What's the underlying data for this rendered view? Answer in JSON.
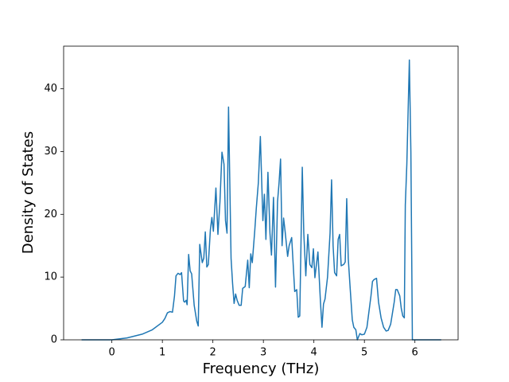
{
  "chart_data": {
    "type": "line",
    "xlabel": "Frequency (THz)",
    "ylabel": "Density of States",
    "xlim": [
      -0.955,
      6.855
    ],
    "ylim": [
      0,
      46.8
    ],
    "xticks": [
      0,
      1,
      2,
      3,
      4,
      5,
      6
    ],
    "yticks": [
      0,
      10,
      20,
      30,
      40
    ],
    "grid": false,
    "series": [
      {
        "color": "#1f77b4",
        "x": [
          -0.6,
          0,
          0.3,
          0.6,
          0.8,
          1.0,
          1.05,
          1.1,
          1.15,
          1.2,
          1.24,
          1.27,
          1.31,
          1.35,
          1.38,
          1.42,
          1.44,
          1.47,
          1.49,
          1.52,
          1.55,
          1.58,
          1.63,
          1.68,
          1.71,
          1.74,
          1.79,
          1.82,
          1.85,
          1.88,
          1.91,
          1.95,
          1.98,
          2.01,
          2.06,
          2.1,
          2.14,
          2.18,
          2.22,
          2.25,
          2.28,
          2.31,
          2.36,
          2.39,
          2.42,
          2.45,
          2.48,
          2.52,
          2.56,
          2.59,
          2.64,
          2.69,
          2.72,
          2.75,
          2.78,
          2.83,
          2.86,
          2.9,
          2.94,
          2.99,
          3.02,
          3.05,
          3.09,
          3.13,
          3.16,
          3.2,
          3.24,
          3.28,
          3.31,
          3.34,
          3.37,
          3.4,
          3.43,
          3.48,
          3.51,
          3.56,
          3.59,
          3.62,
          3.66,
          3.69,
          3.72,
          3.77,
          3.8,
          3.84,
          3.88,
          3.92,
          3.96,
          3.99,
          4.02,
          4.05,
          4.08,
          4.13,
          4.16,
          4.19,
          4.22,
          4.27,
          4.32,
          4.35,
          4.38,
          4.41,
          4.45,
          4.48,
          4.51,
          4.54,
          4.59,
          4.62,
          4.65,
          4.68,
          4.72,
          4.76,
          4.79,
          4.83,
          4.86,
          4.91,
          4.95,
          5.0,
          5.05,
          5.09,
          5.13,
          5.16,
          5.19,
          5.24,
          5.28,
          5.33,
          5.38,
          5.43,
          5.47,
          5.52,
          5.55,
          5.59,
          5.62,
          5.65,
          5.7,
          5.73,
          5.76,
          5.79,
          5.81,
          5.84,
          5.89,
          5.92,
          5.95,
          6.16,
          6.52
        ],
        "values": [
          0,
          0,
          0.3,
          0.9,
          1.6,
          2.8,
          3.4,
          4.3,
          4.5,
          4.4,
          7,
          10.2,
          10.6,
          10.4,
          10.7,
          6.2,
          6.0,
          6.3,
          5.6,
          13.6,
          11,
          10.5,
          5.5,
          3,
          2.2,
          15.2,
          12.3,
          13,
          17.2,
          11.6,
          12,
          17.5,
          19.5,
          17.3,
          24.2,
          16.8,
          22,
          29.9,
          28,
          19,
          17,
          37.1,
          13,
          9,
          5.8,
          7.3,
          6.3,
          5.5,
          5.5,
          8.2,
          8.5,
          12.7,
          8.3,
          13.7,
          12.3,
          17.5,
          21,
          25,
          32.4,
          19,
          23.2,
          16,
          26.7,
          17,
          13.5,
          22.7,
          8.4,
          22,
          25,
          28.8,
          15,
          19.4,
          17.3,
          13.3,
          15,
          16.3,
          12,
          7.7,
          8,
          3.6,
          3.8,
          27.5,
          17,
          10.2,
          16.8,
          12,
          11.5,
          14.5,
          9.9,
          12,
          14,
          6,
          2,
          5.7,
          6.5,
          10,
          17,
          25.5,
          15,
          10.7,
          10.2,
          16,
          16.8,
          11.8,
          12,
          12.4,
          22.5,
          13,
          8,
          3.2,
          2,
          1.6,
          0,
          1,
          0.8,
          0.9,
          2,
          4.5,
          7,
          9.3,
          9.6,
          9.8,
          6,
          3.5,
          2,
          1.4,
          1.5,
          2.5,
          4,
          6,
          8,
          8,
          7,
          5,
          3.8,
          3.5,
          21.5,
          28,
          44.6,
          30,
          0,
          0,
          0
        ]
      }
    ]
  }
}
